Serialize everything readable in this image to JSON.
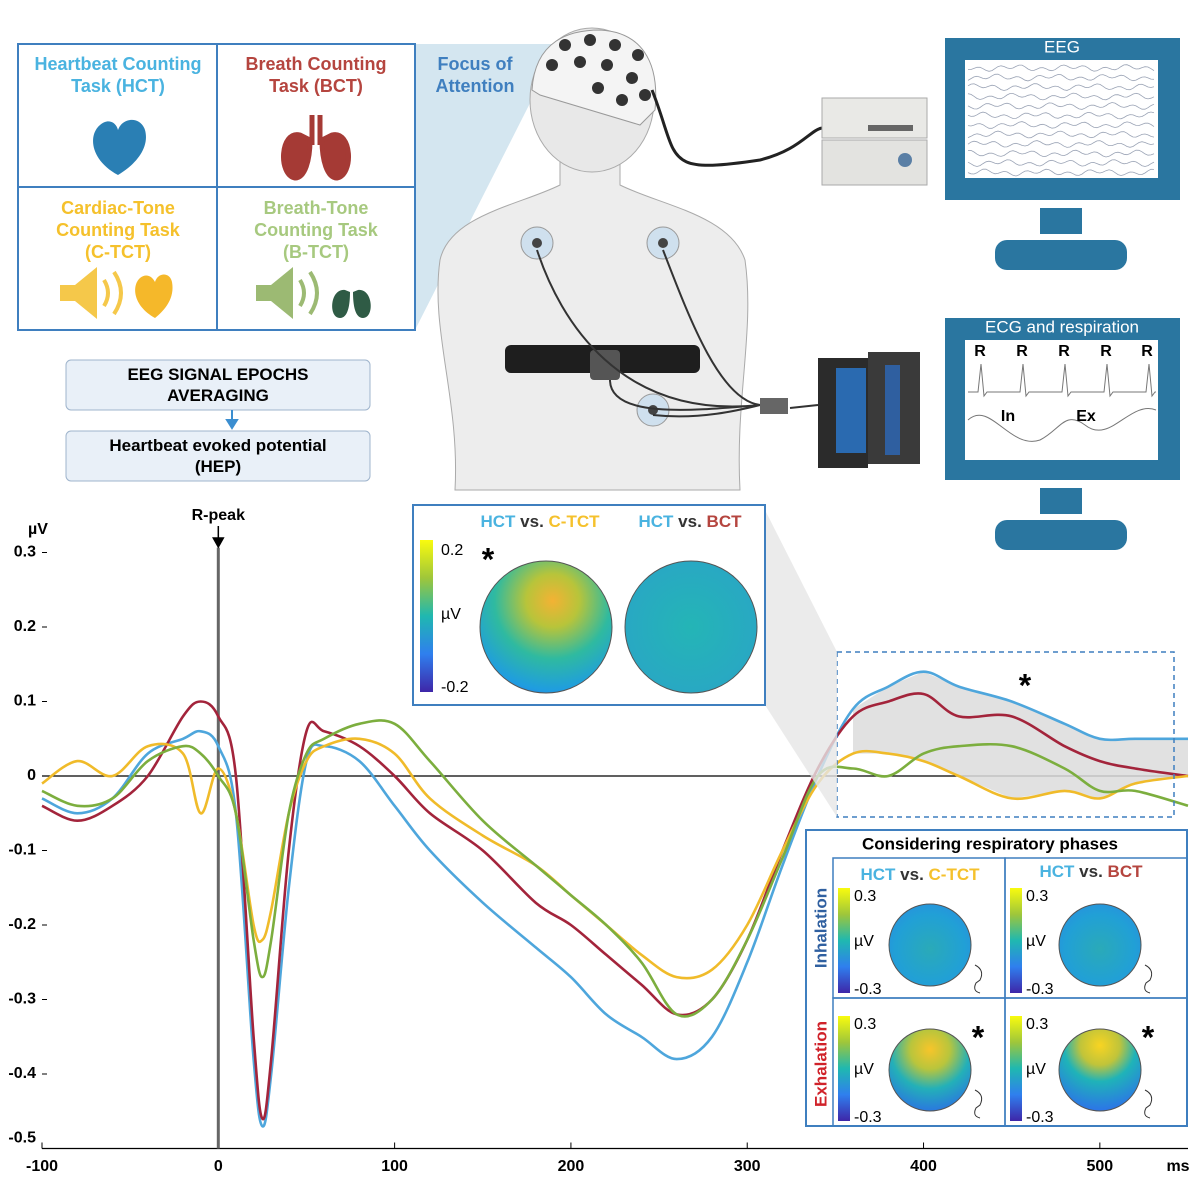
{
  "tasks": [
    {
      "lines": [
        "Heartbeat Counting",
        "Task (HCT)"
      ]
    },
    {
      "lines": [
        "Breath Counting",
        "Task (BCT)"
      ]
    },
    {
      "lines": [
        "Cardiac-Tone",
        "Counting Task",
        "(C-TCT)"
      ]
    },
    {
      "lines": [
        "Breath-Tone",
        "Counting Task",
        "(B-TCT)"
      ]
    }
  ],
  "attention": [
    "Focus of",
    "Attention"
  ],
  "eeg_monitor": {
    "title": "EEG"
  },
  "ecg_monitor": {
    "title": "ECG and respiration",
    "peaks": [
      "R",
      "R",
      "R",
      "R",
      "R"
    ],
    "phases": [
      "In",
      "Ex"
    ]
  },
  "pipeline": [
    [
      "EEG SIGNAL EPOCHS",
      "AVERAGING"
    ],
    [
      "Heartbeat evoked potential",
      "(HEP)"
    ]
  ],
  "topo_inset": {
    "comparisons": [
      {
        "a": "HCT",
        "vs": "vs.",
        "b": "C-TCT"
      },
      {
        "a": "HCT",
        "vs": "vs.",
        "b": "BCT"
      }
    ],
    "colorbar": {
      "max": 0.2,
      "unit": "µV",
      "min": -0.2
    },
    "significance": "*"
  },
  "resp_panel": {
    "title": "Considering respiratory phases",
    "rows": [
      "Inhalation",
      "Exhalation"
    ],
    "comparisons": [
      {
        "a": "HCT",
        "vs": "vs.",
        "b": "C-TCT"
      },
      {
        "a": "HCT",
        "vs": "vs.",
        "b": "BCT"
      }
    ],
    "colorbar": {
      "max": 0.3,
      "unit": "µV",
      "min": -0.3
    },
    "significance": "*"
  },
  "chart_data": {
    "type": "line",
    "ylabel": "µV",
    "xlabel": "ms",
    "annotation": {
      "text": "R-peak",
      "x": 0
    },
    "significance": "*",
    "x": [
      -100,
      -80,
      -60,
      -40,
      -20,
      -10,
      0,
      10,
      20,
      25,
      30,
      40,
      50,
      60,
      80,
      100,
      120,
      150,
      180,
      200,
      220,
      240,
      260,
      280,
      300,
      320,
      340,
      360,
      380,
      400,
      420,
      450,
      480,
      500,
      520,
      550
    ],
    "series": [
      {
        "color": "#4ea6dc",
        "values": [
          -0.03,
          -0.05,
          -0.03,
          0.03,
          0.05,
          0.06,
          0.04,
          -0.05,
          -0.38,
          -0.47,
          -0.4,
          -0.15,
          0.02,
          0.04,
          0.02,
          -0.04,
          -0.1,
          -0.17,
          -0.23,
          -0.27,
          -0.32,
          -0.35,
          -0.38,
          -0.35,
          -0.25,
          -0.12,
          0.0,
          0.09,
          0.12,
          0.14,
          0.12,
          0.1,
          0.07,
          0.05,
          0.05,
          0.05
        ]
      },
      {
        "color": "#a3243b",
        "values": [
          -0.04,
          -0.06,
          -0.04,
          0.0,
          0.08,
          0.1,
          0.08,
          0.0,
          -0.35,
          -0.46,
          -0.38,
          -0.1,
          0.06,
          0.06,
          0.04,
          0.0,
          -0.05,
          -0.1,
          -0.17,
          -0.2,
          -0.24,
          -0.28,
          -0.32,
          -0.3,
          -0.22,
          -0.1,
          0.01,
          0.08,
          0.1,
          0.11,
          0.08,
          0.08,
          0.04,
          0.02,
          0.01,
          0.0
        ]
      },
      {
        "color": "#f0bb2a",
        "values": [
          -0.01,
          0.02,
          0.0,
          0.04,
          0.03,
          -0.05,
          0.01,
          -0.05,
          -0.2,
          -0.22,
          -0.18,
          -0.05,
          0.02,
          0.04,
          0.05,
          0.03,
          -0.03,
          -0.08,
          -0.12,
          -0.16,
          -0.2,
          -0.24,
          -0.27,
          -0.26,
          -0.2,
          -0.1,
          -0.01,
          0.03,
          0.03,
          0.02,
          0.0,
          -0.03,
          -0.02,
          -0.03,
          -0.01,
          0.0
        ]
      },
      {
        "color": "#7cae3e",
        "values": [
          -0.02,
          -0.04,
          -0.03,
          0.02,
          0.04,
          0.03,
          0.0,
          -0.05,
          -0.22,
          -0.27,
          -0.22,
          -0.05,
          0.03,
          0.05,
          0.07,
          0.07,
          0.02,
          -0.06,
          -0.12,
          -0.16,
          -0.2,
          -0.25,
          -0.32,
          -0.3,
          -0.22,
          -0.11,
          0.0,
          0.01,
          0.0,
          0.03,
          0.04,
          0.04,
          0.01,
          -0.02,
          -0.02,
          -0.04
        ]
      }
    ],
    "xlim": [
      -100,
      550
    ],
    "ylim": [
      -0.5,
      0.32
    ],
    "xticks": [
      -100,
      0,
      100,
      200,
      300,
      400,
      500
    ],
    "yticks": [
      0.3,
      0.2,
      0.1,
      0,
      -0.1,
      -0.2,
      -0.3,
      -0.4,
      -0.5
    ]
  }
}
